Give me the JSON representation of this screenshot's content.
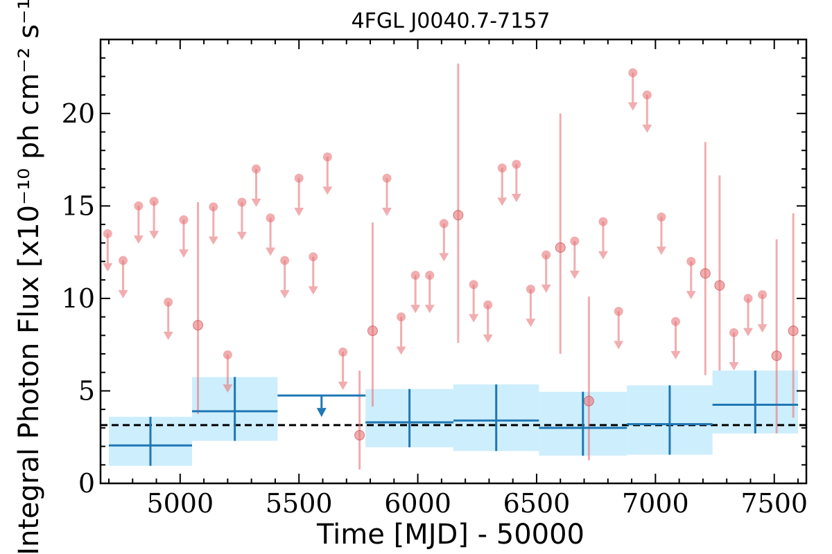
{
  "chart_data": {
    "type": "scatter",
    "title": "4FGL J0040.7-7157",
    "xlabel": "Time [MJD] - 50000",
    "ylabel": "Integral Photon Flux [x10⁻¹⁰ ph cm⁻² s⁻¹]",
    "xlim": [
      4665,
      7635
    ],
    "ylim": [
      0,
      24
    ],
    "x_ticks": [
      5000,
      5500,
      6000,
      6500,
      7000,
      7500
    ],
    "y_ticks": [
      0,
      5,
      10,
      15,
      20
    ],
    "mean_flux": 3.15,
    "colors": {
      "short_bins": "#e8767a",
      "long_bins": "#1f77b4",
      "long_band": "#cdeefc",
      "mean_line": "#000000"
    },
    "short_bin_upper_limits": [
      {
        "x": 4695,
        "y": 13.5
      },
      {
        "x": 4760,
        "y": 12.05
      },
      {
        "x": 4825,
        "y": 15.0
      },
      {
        "x": 4890,
        "y": 15.25
      },
      {
        "x": 4950,
        "y": 9.8
      },
      {
        "x": 5015,
        "y": 14.25
      },
      {
        "x": 5140,
        "y": 14.95
      },
      {
        "x": 5200,
        "y": 6.95
      },
      {
        "x": 5260,
        "y": 15.2
      },
      {
        "x": 5320,
        "y": 17.0
      },
      {
        "x": 5380,
        "y": 14.35
      },
      {
        "x": 5440,
        "y": 12.05
      },
      {
        "x": 5500,
        "y": 16.5
      },
      {
        "x": 5560,
        "y": 12.25
      },
      {
        "x": 5620,
        "y": 17.65
      },
      {
        "x": 5685,
        "y": 7.1
      },
      {
        "x": 5870,
        "y": 16.5
      },
      {
        "x": 5930,
        "y": 9.0
      },
      {
        "x": 5990,
        "y": 11.25
      },
      {
        "x": 6050,
        "y": 11.25
      },
      {
        "x": 6110,
        "y": 14.05
      },
      {
        "x": 6235,
        "y": 10.75
      },
      {
        "x": 6295,
        "y": 9.65
      },
      {
        "x": 6355,
        "y": 17.05
      },
      {
        "x": 6415,
        "y": 17.25
      },
      {
        "x": 6475,
        "y": 10.5
      },
      {
        "x": 6540,
        "y": 12.35
      },
      {
        "x": 6660,
        "y": 13.1
      },
      {
        "x": 6780,
        "y": 14.15
      },
      {
        "x": 6845,
        "y": 9.3
      },
      {
        "x": 6905,
        "y": 22.2
      },
      {
        "x": 6965,
        "y": 21.0
      },
      {
        "x": 7025,
        "y": 14.4
      },
      {
        "x": 7085,
        "y": 8.75
      },
      {
        "x": 7150,
        "y": 12.0
      },
      {
        "x": 7330,
        "y": 8.15
      },
      {
        "x": 7390,
        "y": 10.0
      },
      {
        "x": 7450,
        "y": 10.2
      }
    ],
    "short_bin_detections": [
      {
        "x": 5075,
        "y": 8.55,
        "ylo": 3.75,
        "yhi": 15.2
      },
      {
        "x": 5755,
        "y": 2.6,
        "ylo": 0.75,
        "yhi": 6.1
      },
      {
        "x": 5810,
        "y": 8.25,
        "ylo": 4.15,
        "yhi": 14.1
      },
      {
        "x": 6170,
        "y": 14.5,
        "ylo": 7.6,
        "yhi": 22.7
      },
      {
        "x": 6600,
        "y": 12.75,
        "ylo": 7.0,
        "yhi": 20.0
      },
      {
        "x": 6720,
        "y": 4.45,
        "ylo": 1.25,
        "yhi": 10.1
      },
      {
        "x": 7210,
        "y": 11.35,
        "ylo": 5.85,
        "yhi": 18.45
      },
      {
        "x": 7270,
        "y": 10.7,
        "ylo": 6.1,
        "yhi": 16.65
      },
      {
        "x": 7510,
        "y": 6.9,
        "ylo": 2.7,
        "yhi": 13.2
      },
      {
        "x": 7580,
        "y": 8.25,
        "ylo": 3.55,
        "yhi": 14.6
      }
    ],
    "long_bin_detections": [
      {
        "x0": 4700,
        "x1": 5050,
        "y": 2.05,
        "ylo": 0.95,
        "yhi": 3.6
      },
      {
        "x0": 5050,
        "x1": 5410,
        "y": 3.9,
        "ylo": 2.3,
        "yhi": 5.75
      },
      {
        "x0": 5780,
        "x1": 6150,
        "y": 3.3,
        "ylo": 1.95,
        "yhi": 5.1
      },
      {
        "x0": 6150,
        "x1": 6510,
        "y": 3.4,
        "ylo": 1.75,
        "yhi": 5.35
      },
      {
        "x0": 6510,
        "x1": 6880,
        "y": 3.0,
        "ylo": 1.5,
        "yhi": 4.95
      },
      {
        "x0": 6880,
        "x1": 7240,
        "y": 3.2,
        "ylo": 1.55,
        "yhi": 5.3
      },
      {
        "x0": 7240,
        "x1": 7600,
        "y": 4.25,
        "ylo": 2.7,
        "yhi": 6.1
      }
    ],
    "long_bin_upper_limits": [
      {
        "x0": 5410,
        "x1": 5780,
        "y": 4.75
      }
    ]
  }
}
